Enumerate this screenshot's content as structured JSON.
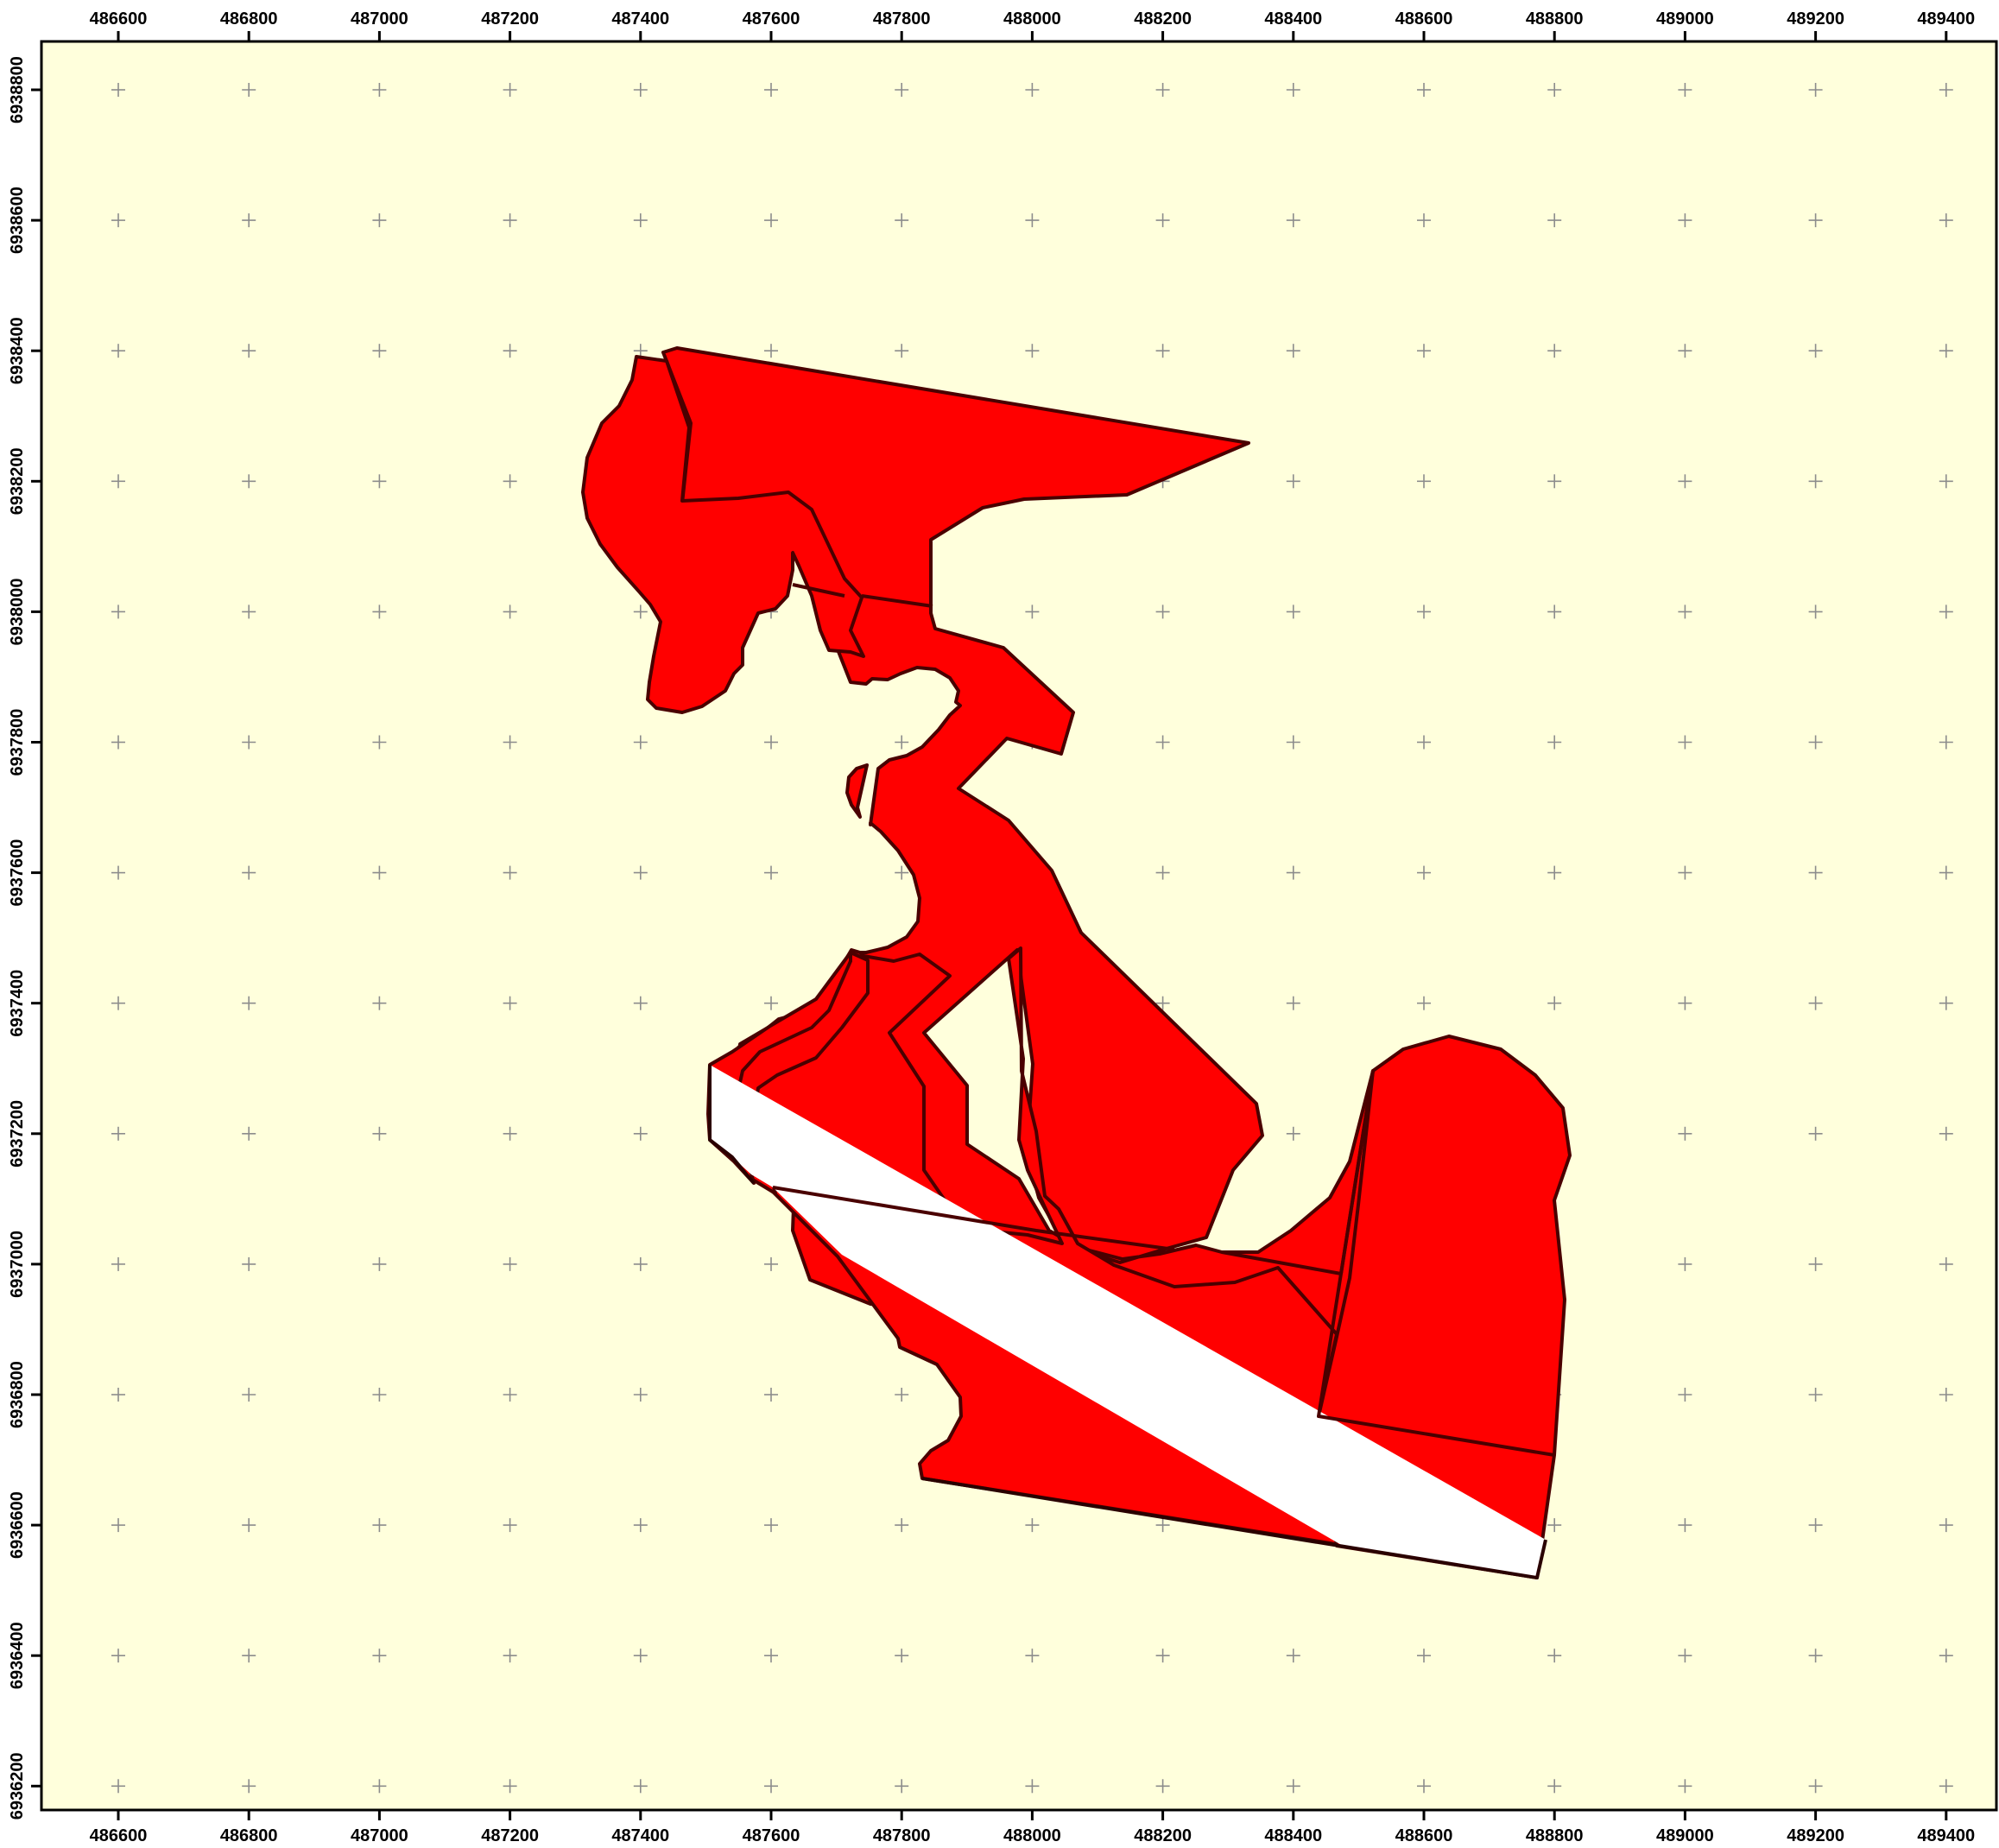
{
  "map": {
    "x_axis": {
      "labels": [
        "486600",
        "486800",
        "487000",
        "487200",
        "487400",
        "487600",
        "487800",
        "488000",
        "488200",
        "488400",
        "488600",
        "488800",
        "489000",
        "489200",
        "489400"
      ]
    },
    "y_axis": {
      "labels": [
        "6938800",
        "6938600",
        "6938400",
        "6938200",
        "6938000",
        "6937800",
        "6937600",
        "6937400",
        "6937200",
        "6937000",
        "6936800",
        "6936600",
        "6936400",
        "6936200"
      ]
    },
    "colors": {
      "background": "#ffffdc",
      "parcel_fill": "#ff0000",
      "parcel_outline": "#4a0000",
      "strip_fill": "#ffffff",
      "grid_marker": "#8c8c8c"
    },
    "features": {
      "parcels": "red parcel polygons",
      "strip": "white diagonal strip"
    }
  }
}
